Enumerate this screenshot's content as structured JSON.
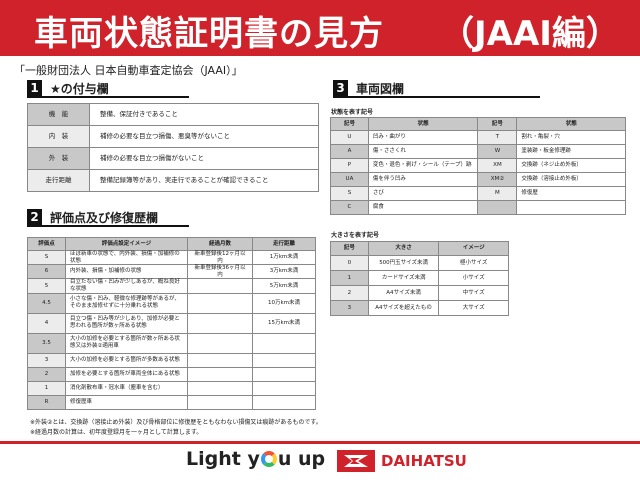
{
  "header": {
    "title": "車両状態証明書の見方",
    "title_suffix": "（JAAI編）",
    "accent": "#d0222b"
  },
  "subtitle": "「一般財団法人 日本自動車査定協会（JAAI）」",
  "section1": {
    "num": "1",
    "title": "★の付与欄",
    "rows": [
      {
        "label": "機　能",
        "text": "整備、保証付きであること"
      },
      {
        "label": "内　装",
        "text": "補修の必要な目立つ損傷、悪臭等がないこと"
      },
      {
        "label": "外　装",
        "text": "補修の必要な目立つ損傷がないこと"
      },
      {
        "label": "走行距離",
        "text": "整備記録簿等があり、実走行であることが確認できること"
      }
    ]
  },
  "section2": {
    "num": "2",
    "title": "評価点及び修復歴欄",
    "headers": [
      "評価点",
      "評価点設定イメージ",
      "経過月数",
      "走行距離"
    ],
    "rows": [
      [
        "S",
        "ほぼ新車の状態で、内外装、損傷・加補修の状態",
        "新車登録後12ヶ月以内",
        "1万km未満"
      ],
      [
        "6",
        "内外装、損傷・加補修の状態",
        "新車登録後36ヶ月以内",
        "3万km未満"
      ],
      [
        "5",
        "目立たない傷・凹みが少しあるが、概ね良好な状態",
        "",
        "5万km未満"
      ],
      [
        "4.5",
        "小さな傷・凹み、軽微な修理跡等があるが、そのまま加修せずに十分乗れる状態",
        "",
        "10万km未満"
      ],
      [
        "4",
        "目立つ傷・凹み等が少しあり、加修が必要と思われる箇所が数ヶ所ある状態",
        "",
        "15万km未満"
      ],
      [
        "3.5",
        "大小の加修を必要とする箇所が数ヶ所ある状態又は外装②適用車",
        "",
        ""
      ],
      [
        "3",
        "大小の加修を必要とする箇所が多数ある状態",
        "",
        ""
      ],
      [
        "2",
        "加修を必要とする箇所が車両全体にある状態",
        "",
        ""
      ],
      [
        "1",
        "消化剤散布車・冠水車（塵車を含む）",
        "",
        ""
      ],
      [
        "R",
        "修復歴車",
        "",
        ""
      ]
    ]
  },
  "notes": [
    "※外装②とは、交換跡（溶接止め外装）及び骨格部位に修復歴をともなわない損傷又は痕跡があるものです。",
    "※経過月数の計算は、初年度登録月を一ヶ月として計算します。"
  ],
  "section3": {
    "num": "3",
    "title": "車両図欄",
    "state_label": "状態を表す記号",
    "state_headers": [
      "記号",
      "状態",
      "記号",
      "状態"
    ],
    "state_rows": [
      [
        "U",
        "凹み・曲がり",
        "T",
        "割れ・亀裂・穴"
      ],
      [
        "A",
        "傷・ささくれ",
        "W",
        "塗装跡・板金修理跡"
      ],
      [
        "P",
        "変色・退色・剥げ・シール（テープ）跡",
        "XM",
        "交換跡（ネジ止め外板）"
      ],
      [
        "UA",
        "傷を伴う凹み",
        "XM②",
        "交換跡（溶接止め外板）"
      ],
      [
        "S",
        "さび",
        "M",
        "修復歴"
      ],
      [
        "C",
        "腐食",
        "",
        ""
      ]
    ],
    "size_label": "大きさを表す記号",
    "size_headers": [
      "記号",
      "大きさ",
      "イメージ"
    ],
    "size_rows": [
      [
        "0",
        "500円玉サイズ未満",
        "極小サイズ"
      ],
      [
        "1",
        "カードサイズ未満",
        "小サイズ"
      ],
      [
        "2",
        "A4サイズ未満",
        "中サイズ"
      ],
      [
        "3",
        "A4サイズを超えたもの",
        "大サイズ"
      ]
    ]
  },
  "footer": {
    "slogan_pre": "Light y",
    "slogan_post": "u up",
    "brand": "DAIHATSU"
  }
}
